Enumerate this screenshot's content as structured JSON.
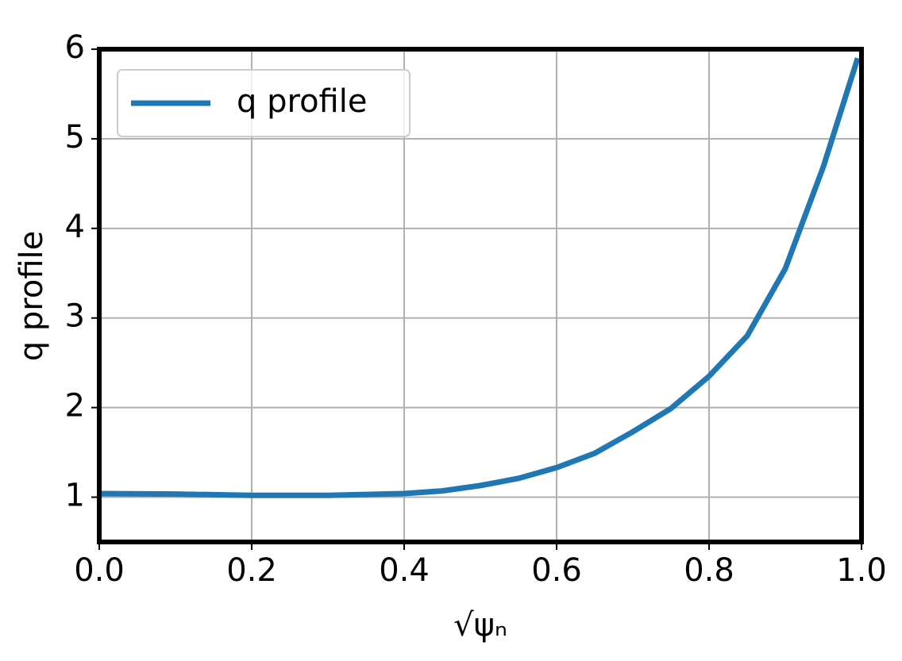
{
  "chart_data": {
    "type": "line",
    "xlabel": "√ψₙ",
    "ylabel": "q profile",
    "x": [
      0,
      0.1,
      0.2,
      0.3,
      0.4,
      0.45,
      0.5,
      0.55,
      0.6,
      0.65,
      0.7,
      0.75,
      0.8,
      0.85,
      0.9,
      0.95,
      0.995
    ],
    "series": [
      {
        "name": "q profile",
        "color": "#1f77b4",
        "values": [
          1.04,
          1.035,
          1.02,
          1.02,
          1.04,
          1.07,
          1.13,
          1.21,
          1.33,
          1.49,
          1.73,
          1.99,
          2.35,
          2.8,
          3.55,
          4.69,
          5.9
        ]
      }
    ],
    "xlim": [
      0,
      1
    ],
    "ylim": [
      0.5,
      6
    ],
    "xticks": [
      {
        "value": 0,
        "label": "0.0"
      },
      0.2,
      0.4,
      0.6,
      0.8,
      {
        "value": 1,
        "label": "1.0"
      }
    ],
    "yticks": [
      1,
      2,
      3,
      4,
      5,
      6
    ],
    "grid": true,
    "legend": "upper left"
  }
}
